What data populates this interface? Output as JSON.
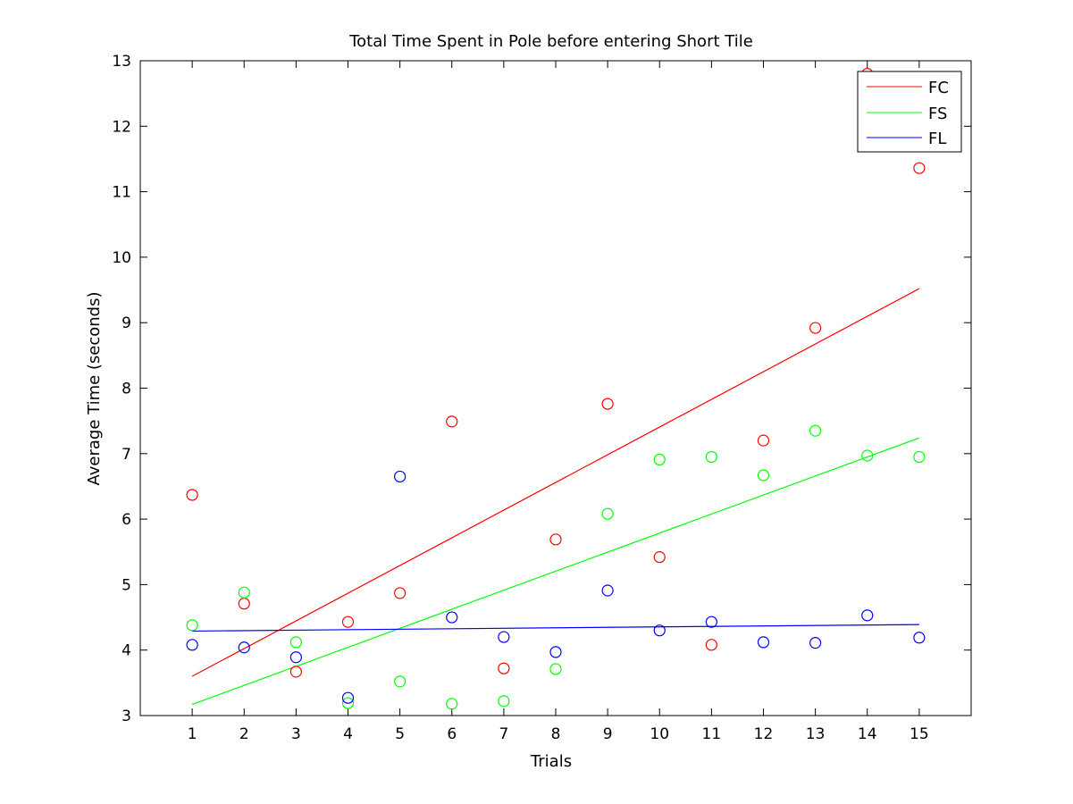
{
  "chart_data": {
    "type": "scatter",
    "title": "Total Time Spent in Pole before entering Short Tile",
    "xlabel": "Trials",
    "ylabel": "Average Time (seconds)",
    "xlim": [
      0,
      16
    ],
    "ylim": [
      3,
      13
    ],
    "xticks": [
      "1",
      "2",
      "3",
      "4",
      "5",
      "6",
      "7",
      "8",
      "9",
      "10",
      "11",
      "12",
      "13",
      "14",
      "15"
    ],
    "yticks": [
      "3",
      "4",
      "5",
      "6",
      "7",
      "8",
      "9",
      "10",
      "11",
      "12",
      "13"
    ],
    "grid": false,
    "legend_position": "top-right",
    "x": [
      1,
      2,
      3,
      4,
      5,
      6,
      7,
      8,
      9,
      10,
      11,
      12,
      13,
      14,
      15
    ],
    "series": [
      {
        "name": "FC",
        "color": "#ff0000",
        "values": [
          6.37,
          4.71,
          3.67,
          4.43,
          4.87,
          7.49,
          3.72,
          5.69,
          7.76,
          5.42,
          4.08,
          7.2,
          8.92,
          12.8,
          11.36
        ],
        "trend": [
          3.6,
          9.52
        ]
      },
      {
        "name": "FS",
        "color": "#00ff00",
        "values": [
          4.38,
          4.88,
          4.12,
          3.19,
          3.52,
          3.18,
          3.22,
          3.71,
          6.08,
          6.91,
          6.95,
          6.67,
          7.35,
          6.97,
          6.95
        ],
        "trend": [
          3.17,
          7.24
        ]
      },
      {
        "name": "FL",
        "color": "#0000ff",
        "values": [
          4.08,
          4.04,
          3.89,
          3.27,
          6.65,
          4.5,
          4.2,
          3.97,
          4.91,
          4.3,
          4.43,
          4.12,
          4.11,
          4.53,
          4.19
        ],
        "trend": [
          4.29,
          4.39
        ]
      }
    ]
  }
}
